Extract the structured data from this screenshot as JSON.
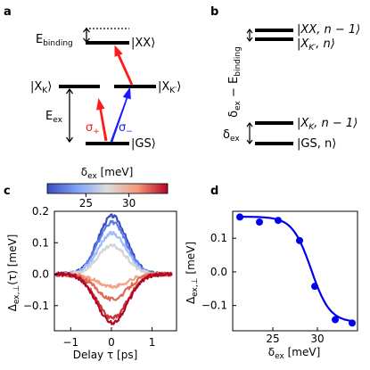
{
  "panels": {
    "a": "a",
    "b": "b",
    "c": "c",
    "d": "d"
  },
  "panel_a": {
    "levels": {
      "xx": "|XX⟩",
      "xk": "|X",
      "xk_sub": "K",
      "xk_close": "⟩",
      "xkp": "|X",
      "xkp_sub": "K′",
      "xkp_close": "⟩",
      "gs": "|GS⟩"
    },
    "e_binding": "E",
    "e_binding_sub": "binding",
    "e_ex": "E",
    "e_ex_sub": "ex",
    "sigma_plus": "σ",
    "sigma_plus_sub": "+",
    "sigma_minus": "σ",
    "sigma_minus_sub": "−",
    "colors": {
      "sigma_plus": "#ff1a1a",
      "sigma_minus": "#1a1aff"
    }
  },
  "panel_b": {
    "ylabel": "δex − Ebinding",
    "ylabel_parts": {
      "d": "δ",
      "d_sub": "ex",
      "minus": " − E",
      "e_sub": "binding"
    },
    "delta_ex": "δ",
    "delta_ex_sub": "ex",
    "levels": {
      "xx": {
        "pre": "|XX, n − 1⟩"
      },
      "xkp": {
        "pre": "|X",
        "sub": "K′",
        "post": ", n⟩"
      },
      "xk": {
        "pre": "|X",
        "sub": "K",
        "post": ", n − 1⟩"
      },
      "gs": {
        "pre": "|GS, n⟩"
      }
    }
  },
  "colorbar": {
    "label": "δ",
    "label_sub": "ex",
    "label_unit": " [meV]",
    "ticks": [
      "25",
      "30"
    ],
    "range": [
      20.5,
      34.5
    ],
    "colors": [
      "#3b4cc0",
      "#b40426"
    ]
  },
  "panel_c": {
    "ylabel": "Δex,⊥(τ) [meV]",
    "ylabel_parts": {
      "pre": "Δ",
      "sub": "ex,⊥",
      "post": "(τ) [meV]"
    },
    "xlabel": "Delay τ [ps]",
    "xticks": [
      "−1",
      "0",
      "1"
    ],
    "yticks": [
      "0.2",
      "0.1",
      "0.0",
      "−0.1"
    ]
  },
  "panel_d": {
    "ylabel": "Δex,⊥ [meV]",
    "ylabel_parts": {
      "pre": "Δ",
      "sub": "ex,⊥",
      "post": " [meV]"
    },
    "xlabel": "δex [meV]",
    "xlabel_parts": {
      "pre": "δ",
      "sub": "ex",
      "post": " [meV]"
    },
    "xticks": [
      "25",
      "30"
    ],
    "yticks": [
      "0.1",
      "0.0",
      "−0.1"
    ],
    "color": "#0000ee"
  },
  "chart_data": [
    {
      "type": "line",
      "panel": "c",
      "xlim": [
        -1.4,
        1.6
      ],
      "ylim": [
        -0.18,
        0.2
      ],
      "series": [
        {
          "color": "#3b4cc0",
          "peak": 0.185
        },
        {
          "color": "#5d7ce6",
          "peak": 0.165
        },
        {
          "color": "#9bbcff",
          "peak": 0.13
        },
        {
          "color": "#d4d4d4",
          "peak": 0.09
        },
        {
          "color": "#f2a283",
          "peak": -0.04
        },
        {
          "color": "#e06b55",
          "peak": -0.08
        },
        {
          "color": "#c83a35",
          "peak": -0.14
        },
        {
          "color": "#b40426",
          "peak": -0.155
        }
      ]
    },
    {
      "type": "scatter",
      "panel": "d",
      "xlim": [
        20.5,
        34.5
      ],
      "ylim": [
        -0.175,
        0.18
      ],
      "x": [
        21.3,
        23.5,
        25.6,
        28.0,
        29.7,
        32.0,
        33.9
      ],
      "y": [
        0.163,
        0.148,
        0.153,
        0.093,
        -0.043,
        -0.142,
        -0.152
      ]
    }
  ]
}
